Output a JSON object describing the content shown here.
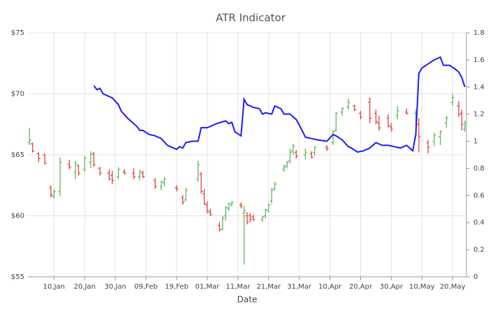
{
  "chart_data": {
    "type": "hilo-atr",
    "title": "ATR Indicator",
    "x_label": "Date",
    "xlim": [
      0.5,
      143.5
    ],
    "xticks": [
      {
        "value": 9,
        "label": "10,Jan"
      },
      {
        "value": 19,
        "label": "20,Jan"
      },
      {
        "value": 29,
        "label": "30,Jan"
      },
      {
        "value": 39,
        "label": "09,Feb"
      },
      {
        "value": 49,
        "label": "19,Feb"
      },
      {
        "value": 59,
        "label": "01,Mar"
      },
      {
        "value": 69,
        "label": "11,Mar"
      },
      {
        "value": 79,
        "label": "21,Mar"
      },
      {
        "value": 89,
        "label": "31,Mar"
      },
      {
        "value": 99,
        "label": "10,Apr"
      },
      {
        "value": 109,
        "label": "20,Apr"
      },
      {
        "value": 119,
        "label": "30,Apr"
      },
      {
        "value": 129,
        "label": "10,May"
      },
      {
        "value": 139,
        "label": "20,May"
      }
    ],
    "ylim": [
      55,
      75
    ],
    "yticks": [
      {
        "value": 55,
        "label": "$55"
      },
      {
        "value": 60,
        "label": "$60"
      },
      {
        "value": 65,
        "label": "$65"
      },
      {
        "value": 70,
        "label": "$70"
      },
      {
        "value": 75,
        "label": "$75"
      }
    ],
    "y2lim": [
      0,
      1.8
    ],
    "y2ticks": [
      0,
      0.2,
      0.4,
      0.6,
      0.8,
      1,
      1.2,
      1.4,
      1.6,
      1.8
    ],
    "grid": true,
    "up_color": "#5cb85c",
    "down_color": "#e0403a",
    "candles": {
      "x": [
        1,
        2,
        4,
        6,
        8,
        9,
        11,
        14,
        16,
        17,
        19,
        21,
        22,
        24,
        27,
        28,
        30,
        32,
        35,
        37,
        38,
        42,
        44,
        45,
        49,
        51,
        52,
        56,
        57,
        58,
        59,
        60,
        63,
        64,
        65,
        66,
        67,
        70,
        71,
        72,
        73,
        74,
        77,
        78,
        79,
        80,
        81,
        84,
        85,
        86,
        87,
        88,
        91,
        93,
        94,
        98,
        100,
        101,
        103,
        105,
        107,
        109,
        112,
        114,
        115,
        118,
        119,
        121,
        124,
        127,
        128,
        131,
        133,
        135,
        137,
        139,
        141,
        142,
        143
      ],
      "open": [
        66.0,
        65.9,
        65.1,
        65.0,
        62.3,
        61.6,
        62.0,
        64.2,
        63.6,
        64.1,
        63.8,
        64.4,
        65.1,
        63.9,
        63.5,
        63.3,
        63.2,
        63.6,
        63.5,
        63.2,
        63.5,
        62.9,
        62.4,
        62.7,
        62.3,
        61.5,
        61.3,
        63.0,
        63.4,
        61.8,
        60.9,
        60.3,
        59.2,
        58.9,
        60.0,
        60.6,
        60.9,
        60.9,
        60.2,
        60.0,
        60.0,
        59.9,
        59.7,
        60.0,
        60.4,
        61.2,
        62.2,
        63.8,
        64.1,
        64.5,
        65.3,
        65.2,
        65.0,
        65.1,
        65.2,
        65.6,
        66.0,
        67.0,
        68.5,
        68.9,
        69.0,
        68.4,
        69.3,
        68.4,
        67.6,
        68.0,
        67.3,
        68.2,
        68.5,
        68.4,
        67.5,
        66.0,
        66.1,
        66.5,
        67.6,
        69.3,
        69.0,
        68.4,
        67.1
      ],
      "high": [
        67.2,
        66.0,
        65.2,
        65.1,
        62.5,
        62.2,
        64.8,
        64.6,
        64.5,
        64.2,
        64.9,
        65.3,
        65.2,
        64.0,
        63.8,
        63.7,
        64.0,
        63.8,
        63.9,
        63.8,
        63.7,
        63.1,
        62.9,
        63.2,
        62.5,
        61.7,
        62.3,
        64.5,
        63.6,
        62.2,
        61.2,
        60.6,
        59.5,
        60.0,
        60.8,
        61.1,
        61.2,
        61.1,
        60.8,
        60.3,
        60.2,
        60.1,
        60.0,
        60.6,
        61.0,
        62.3,
        62.8,
        64.2,
        64.5,
        65.5,
        65.9,
        65.4,
        65.5,
        65.3,
        65.7,
        65.8,
        67.0,
        68.5,
        68.9,
        69.6,
        69.1,
        68.6,
        69.7,
        68.7,
        68.2,
        68.3,
        67.6,
        69.0,
        68.8,
        68.7,
        68.0,
        66.2,
        66.8,
        67.0,
        68.2,
        70.0,
        69.4,
        68.7,
        67.8
      ],
      "low": [
        65.8,
        65.2,
        64.4,
        64.2,
        61.5,
        61.4,
        61.6,
        63.8,
        63.0,
        63.3,
        63.6,
        63.9,
        64.0,
        63.3,
        62.9,
        62.6,
        63.0,
        63.4,
        63.0,
        62.9,
        63.1,
        62.2,
        62.1,
        62.4,
        62.0,
        60.9,
        61.2,
        62.8,
        61.8,
        60.9,
        60.2,
        60.0,
        58.7,
        58.8,
        59.6,
        60.4,
        60.8,
        60.6,
        56.0,
        59.3,
        59.5,
        59.6,
        59.5,
        59.8,
        60.3,
        61.0,
        62.1,
        63.6,
        63.9,
        64.3,
        65.0,
        64.7,
        64.6,
        64.7,
        64.9,
        65.3,
        65.8,
        66.9,
        68.2,
        68.7,
        68.6,
        67.9,
        67.6,
        67.5,
        67.0,
        67.2,
        66.9,
        67.9,
        68.3,
        67.4,
        65.2,
        65.1,
        65.7,
        65.8,
        67.2,
        69.0,
        68.1,
        67.0,
        66.9
      ],
      "close": [
        66.2,
        65.3,
        64.7,
        64.3,
        61.7,
        62.0,
        64.4,
        64.0,
        64.3,
        63.5,
        64.7,
        65.0,
        64.2,
        63.5,
        63.0,
        62.9,
        63.8,
        63.5,
        63.2,
        63.6,
        63.2,
        62.4,
        62.8,
        63.0,
        62.2,
        61.1,
        62.1,
        64.2,
        62.0,
        61.0,
        60.4,
        60.1,
        58.9,
        59.8,
        60.7,
        61.0,
        61.1,
        60.8,
        60.4,
        59.5,
        59.7,
        59.7,
        59.9,
        60.5,
        60.9,
        62.1,
        62.6,
        64.0,
        64.4,
        65.2,
        65.7,
        64.9,
        65.2,
        64.8,
        65.6,
        65.5,
        66.9,
        68.4,
        68.8,
        69.3,
        68.7,
        68.1,
        68.0,
        67.7,
        67.2,
        67.4,
        67.1,
        68.6,
        68.4,
        68.6,
        66.5,
        65.6,
        66.6,
        66.9,
        68.0,
        69.7,
        68.3,
        67.5,
        67.6
      ]
    },
    "atr": {
      "color": "#1a1aff",
      "axis": "y2",
      "x": [
        22,
        23,
        24,
        25,
        28,
        30,
        31,
        33,
        36,
        37,
        38,
        40,
        42,
        44,
        46,
        49,
        50,
        51,
        52,
        54,
        56,
        57,
        59,
        62,
        65,
        66,
        67,
        68,
        70,
        71,
        72,
        74,
        76,
        77,
        78,
        80,
        81,
        83,
        84,
        85,
        86,
        88,
        89,
        91,
        93,
        95,
        98,
        100,
        101,
        103,
        105,
        106,
        108,
        110,
        112,
        114,
        116,
        118,
        120,
        122,
        124,
        126,
        127,
        128,
        129,
        131,
        133,
        135,
        136,
        138,
        140,
        141,
        142,
        143
      ],
      "values": [
        1.41,
        1.38,
        1.39,
        1.35,
        1.32,
        1.27,
        1.22,
        1.17,
        1.11,
        1.08,
        1.08,
        1.05,
        1.04,
        1.02,
        0.97,
        0.94,
        0.96,
        0.95,
        0.99,
        1.0,
        1.0,
        1.1,
        1.1,
        1.13,
        1.15,
        1.13,
        1.14,
        1.07,
        1.04,
        1.31,
        1.27,
        1.25,
        1.24,
        1.2,
        1.21,
        1.2,
        1.26,
        1.24,
        1.2,
        1.2,
        1.2,
        1.16,
        1.12,
        1.03,
        1.02,
        1.01,
        1.0,
        1.05,
        1.04,
        1.01,
        0.96,
        0.95,
        0.92,
        0.93,
        0.95,
        0.99,
        0.97,
        0.97,
        0.96,
        0.95,
        0.97,
        0.93,
        1.05,
        1.5,
        1.54,
        1.57,
        1.6,
        1.62,
        1.56,
        1.56,
        1.53,
        1.51,
        1.47,
        1.4
      ]
    }
  }
}
